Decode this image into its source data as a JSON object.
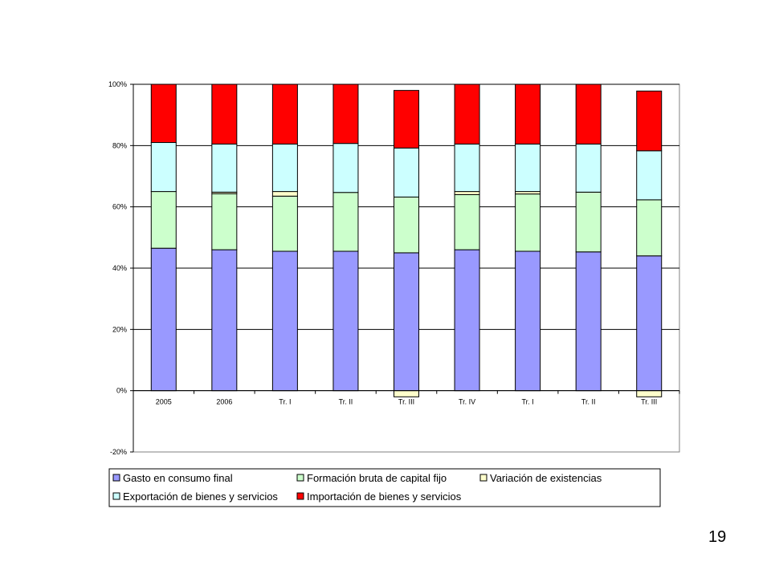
{
  "chart_data": {
    "type": "bar",
    "stacked": true,
    "categories": [
      "2005",
      "2006",
      "Tr. I",
      "Tr. II",
      "Tr. III",
      "Tr. IV",
      "Tr. I",
      "Tr. II",
      "Tr. III"
    ],
    "series": [
      {
        "name": "Gasto en consumo final",
        "color": "#9999ff",
        "values": [
          46.5,
          46,
          45.5,
          45.5,
          45,
          46,
          45.5,
          45.3,
          44
        ]
      },
      {
        "name": "Formación bruta de capital fijo",
        "color": "#ccffcc",
        "values": [
          18.5,
          18.3,
          18,
          19.2,
          18.2,
          18,
          18.7,
          19.5,
          18.3
        ]
      },
      {
        "name": "Variación de existencias",
        "color": "#ffffcc",
        "values": [
          0,
          0.5,
          1.5,
          0,
          -2,
          1,
          0.8,
          0,
          -2
        ]
      },
      {
        "name": "Exportación de bienes y servicios",
        "color": "#ccffff",
        "values": [
          16,
          15.7,
          15.5,
          16,
          16,
          15.5,
          15.5,
          15.7,
          16
        ]
      },
      {
        "name": "Importación de bienes y servicios",
        "color": "#ff0000",
        "values": [
          19,
          19.5,
          19.5,
          19.3,
          18.8,
          19.5,
          19.5,
          19.5,
          19.5
        ]
      }
    ],
    "ylim": [
      -20,
      100
    ],
    "yticks": [
      "-20%",
      "0%",
      "20%",
      "40%",
      "60%",
      "80%",
      "100%"
    ],
    "ytick_values": [
      -20,
      0,
      20,
      40,
      60,
      80,
      100
    ],
    "grid": true,
    "legend_position": "bottom",
    "title": "",
    "xlabel": "",
    "ylabel": ""
  },
  "page_number": "19"
}
